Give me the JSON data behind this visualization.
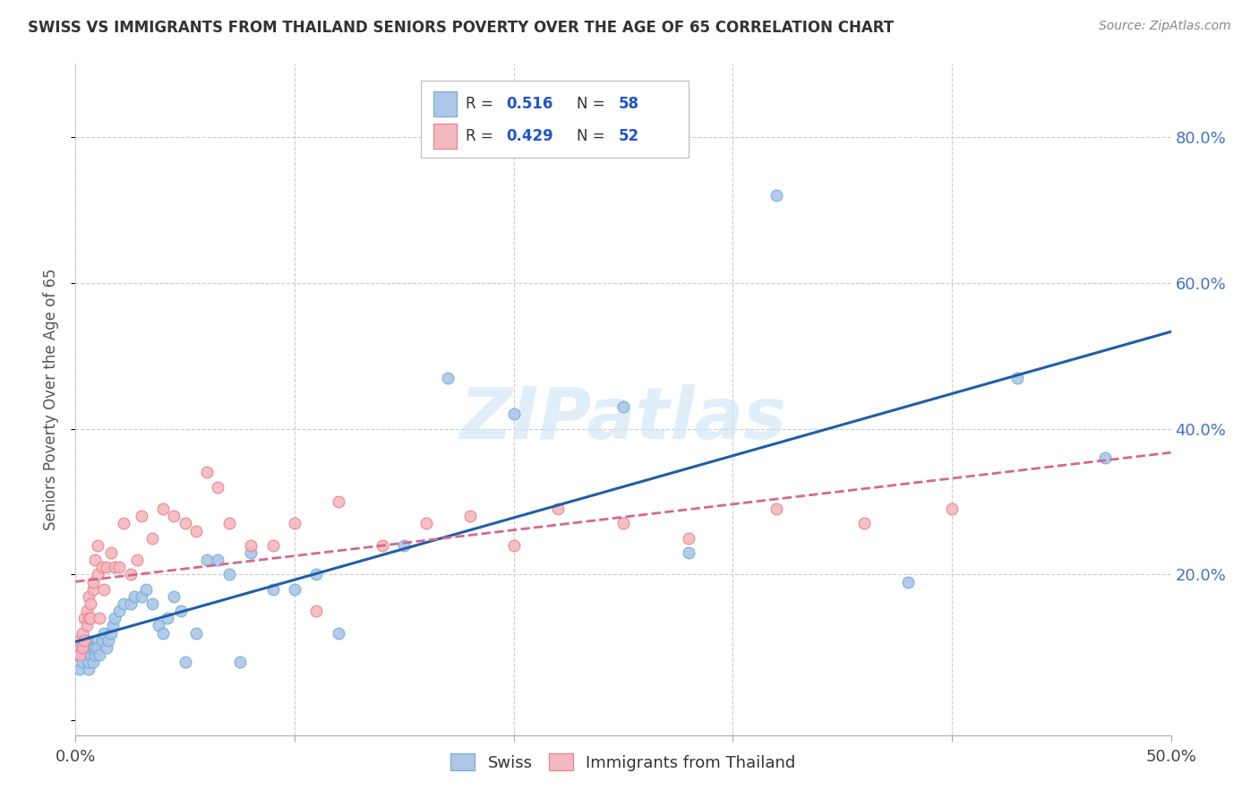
{
  "title": "SWISS VS IMMIGRANTS FROM THAILAND SENIORS POVERTY OVER THE AGE OF 65 CORRELATION CHART",
  "source": "Source: ZipAtlas.com",
  "ylabel": "Seniors Poverty Over the Age of 65",
  "xlim": [
    0.0,
    0.5
  ],
  "ylim": [
    -0.02,
    0.9
  ],
  "ytick_positions": [
    0.2,
    0.4,
    0.6,
    0.8
  ],
  "ytick_labels": [
    "20.0%",
    "40.0%",
    "60.0%",
    "80.0%"
  ],
  "swiss_color": "#aec6e8",
  "swiss_edge_color": "#6aaed6",
  "thai_color": "#f4b8c1",
  "thai_edge_color": "#e87f8a",
  "trend_swiss_color": "#1f5fa6",
  "trend_thai_color": "#d4698a",
  "R_swiss": 0.516,
  "N_swiss": 58,
  "R_thai": 0.429,
  "N_thai": 52,
  "legend_swiss_label": "Swiss",
  "legend_thai_label": "Immigrants from Thailand",
  "background_color": "#ffffff",
  "grid_color": "#cccccc",
  "swiss_x": [
    0.001,
    0.002,
    0.003,
    0.003,
    0.004,
    0.004,
    0.005,
    0.005,
    0.006,
    0.006,
    0.007,
    0.007,
    0.008,
    0.008,
    0.009,
    0.009,
    0.01,
    0.01,
    0.011,
    0.012,
    0.013,
    0.014,
    0.015,
    0.016,
    0.017,
    0.018,
    0.02,
    0.022,
    0.025,
    0.027,
    0.03,
    0.032,
    0.035,
    0.038,
    0.04,
    0.042,
    0.045,
    0.048,
    0.05,
    0.055,
    0.06,
    0.065,
    0.07,
    0.075,
    0.08,
    0.09,
    0.1,
    0.11,
    0.12,
    0.15,
    0.17,
    0.2,
    0.25,
    0.28,
    0.32,
    0.38,
    0.43,
    0.47
  ],
  "swiss_y": [
    0.09,
    0.07,
    0.1,
    0.08,
    0.09,
    0.1,
    0.11,
    0.09,
    0.07,
    0.08,
    0.1,
    0.09,
    0.08,
    0.1,
    0.09,
    0.1,
    0.11,
    0.1,
    0.09,
    0.11,
    0.12,
    0.1,
    0.11,
    0.12,
    0.13,
    0.14,
    0.15,
    0.16,
    0.16,
    0.17,
    0.17,
    0.18,
    0.16,
    0.13,
    0.12,
    0.14,
    0.17,
    0.15,
    0.08,
    0.12,
    0.22,
    0.22,
    0.2,
    0.08,
    0.23,
    0.18,
    0.18,
    0.2,
    0.12,
    0.24,
    0.47,
    0.42,
    0.43,
    0.23,
    0.72,
    0.19,
    0.47,
    0.36
  ],
  "thai_x": [
    0.001,
    0.002,
    0.002,
    0.003,
    0.003,
    0.004,
    0.004,
    0.005,
    0.005,
    0.006,
    0.006,
    0.007,
    0.007,
    0.008,
    0.008,
    0.009,
    0.01,
    0.01,
    0.011,
    0.012,
    0.013,
    0.014,
    0.016,
    0.018,
    0.02,
    0.022,
    0.025,
    0.028,
    0.03,
    0.035,
    0.04,
    0.045,
    0.05,
    0.055,
    0.06,
    0.065,
    0.07,
    0.08,
    0.09,
    0.1,
    0.11,
    0.12,
    0.14,
    0.16,
    0.18,
    0.2,
    0.22,
    0.25,
    0.28,
    0.32,
    0.36,
    0.4
  ],
  "thai_y": [
    0.1,
    0.09,
    0.11,
    0.12,
    0.1,
    0.11,
    0.14,
    0.13,
    0.15,
    0.14,
    0.17,
    0.16,
    0.14,
    0.18,
    0.19,
    0.22,
    0.2,
    0.24,
    0.14,
    0.21,
    0.18,
    0.21,
    0.23,
    0.21,
    0.21,
    0.27,
    0.2,
    0.22,
    0.28,
    0.25,
    0.29,
    0.28,
    0.27,
    0.26,
    0.34,
    0.32,
    0.27,
    0.24,
    0.24,
    0.27,
    0.15,
    0.3,
    0.24,
    0.27,
    0.28,
    0.24,
    0.29,
    0.27,
    0.25,
    0.29,
    0.27,
    0.29
  ]
}
